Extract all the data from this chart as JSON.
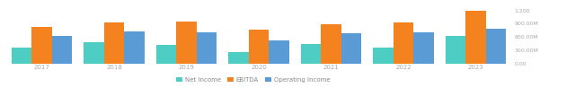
{
  "years": [
    2017,
    2018,
    2019,
    2020,
    2021,
    2022,
    2023
  ],
  "net_income": [
    355,
    475,
    425,
    260,
    430,
    350,
    620
  ],
  "ebitda": [
    820,
    940,
    950,
    760,
    880,
    920,
    1190
  ],
  "operating_income": [
    620,
    720,
    710,
    530,
    680,
    700,
    780
  ],
  "colors": {
    "net_income": "#4ECDC4",
    "ebitda": "#F4821F",
    "operating_income": "#5B9BD5"
  },
  "ylim": [
    0,
    1300
  ],
  "yticks": [
    0,
    300,
    600,
    900,
    1200
  ],
  "legend_labels": [
    "Net Income",
    "EBITDA",
    "Operating Income"
  ],
  "bar_width": 0.28,
  "background_color": "#ffffff"
}
